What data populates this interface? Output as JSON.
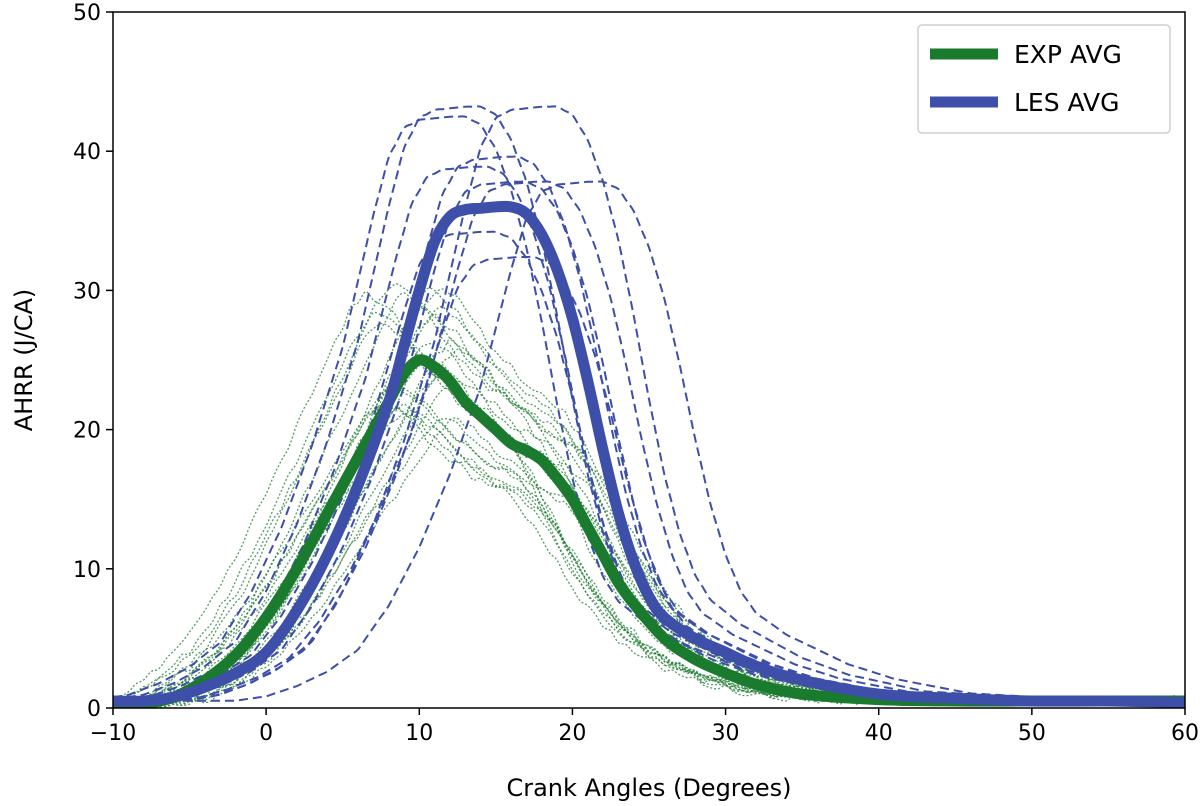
{
  "chart_data": {
    "type": "line",
    "title": "",
    "xlabel": "Crank Angles (Degrees)",
    "ylabel": "AHRR (J/CA)",
    "xlim": [
      -10,
      60
    ],
    "ylim": [
      0,
      50
    ],
    "xticks": [
      -10,
      0,
      10,
      20,
      30,
      40,
      50,
      60
    ],
    "xtick_labels": [
      "−10",
      "0",
      "10",
      "20",
      "30",
      "40",
      "50",
      "60"
    ],
    "yticks": [
      0,
      10,
      20,
      30,
      40,
      50
    ],
    "ytick_labels": [
      "0",
      "10",
      "20",
      "30",
      "40",
      "50"
    ],
    "grid": false,
    "legend_position": "top-right",
    "colors": {
      "exp": "#1a7a2e",
      "les": "#3d4fa8"
    },
    "series": [
      {
        "name": "EXP AVG",
        "style": "solid-thick",
        "x": [
          -10,
          -8,
          -6,
          -4,
          -2,
          0,
          2,
          4,
          6,
          8,
          9,
          10,
          11,
          12,
          13,
          14,
          15,
          16,
          17,
          18,
          19,
          20,
          21,
          22,
          23,
          24,
          26,
          28,
          30,
          32,
          35,
          40,
          45,
          50,
          55,
          60
        ],
        "y": [
          0.3,
          0.3,
          0.8,
          2.0,
          3.8,
          6.5,
          10.0,
          14.0,
          18.0,
          22.0,
          24.0,
          25.0,
          24.5,
          23.5,
          22.0,
          21.0,
          20.0,
          19.0,
          18.5,
          17.8,
          16.5,
          15.0,
          13.0,
          11.0,
          9.0,
          7.5,
          5.0,
          3.5,
          2.5,
          1.7,
          1.0,
          0.6,
          0.5,
          0.5,
          0.5,
          0.5
        ]
      },
      {
        "name": "LES AVG",
        "style": "solid-thick",
        "x": [
          -10,
          -8,
          -6,
          -4,
          -2,
          0,
          2,
          4,
          6,
          8,
          9,
          10,
          11,
          12,
          13,
          14,
          15,
          16,
          17,
          18,
          19,
          20,
          21,
          22,
          23,
          24,
          25,
          26,
          28,
          30,
          32,
          35,
          40,
          45,
          50,
          55,
          60
        ],
        "y": [
          0.5,
          0.5,
          0.8,
          1.5,
          2.5,
          4.0,
          7.0,
          11.0,
          16.0,
          22.0,
          26.0,
          30.0,
          33.5,
          35.3,
          35.8,
          35.9,
          36.0,
          36.0,
          35.5,
          34.0,
          31.5,
          28.0,
          23.5,
          18.5,
          14.0,
          10.5,
          8.0,
          6.5,
          5.0,
          4.0,
          3.0,
          2.0,
          1.0,
          0.7,
          0.5,
          0.5,
          0.4
        ]
      }
    ]
  }
}
